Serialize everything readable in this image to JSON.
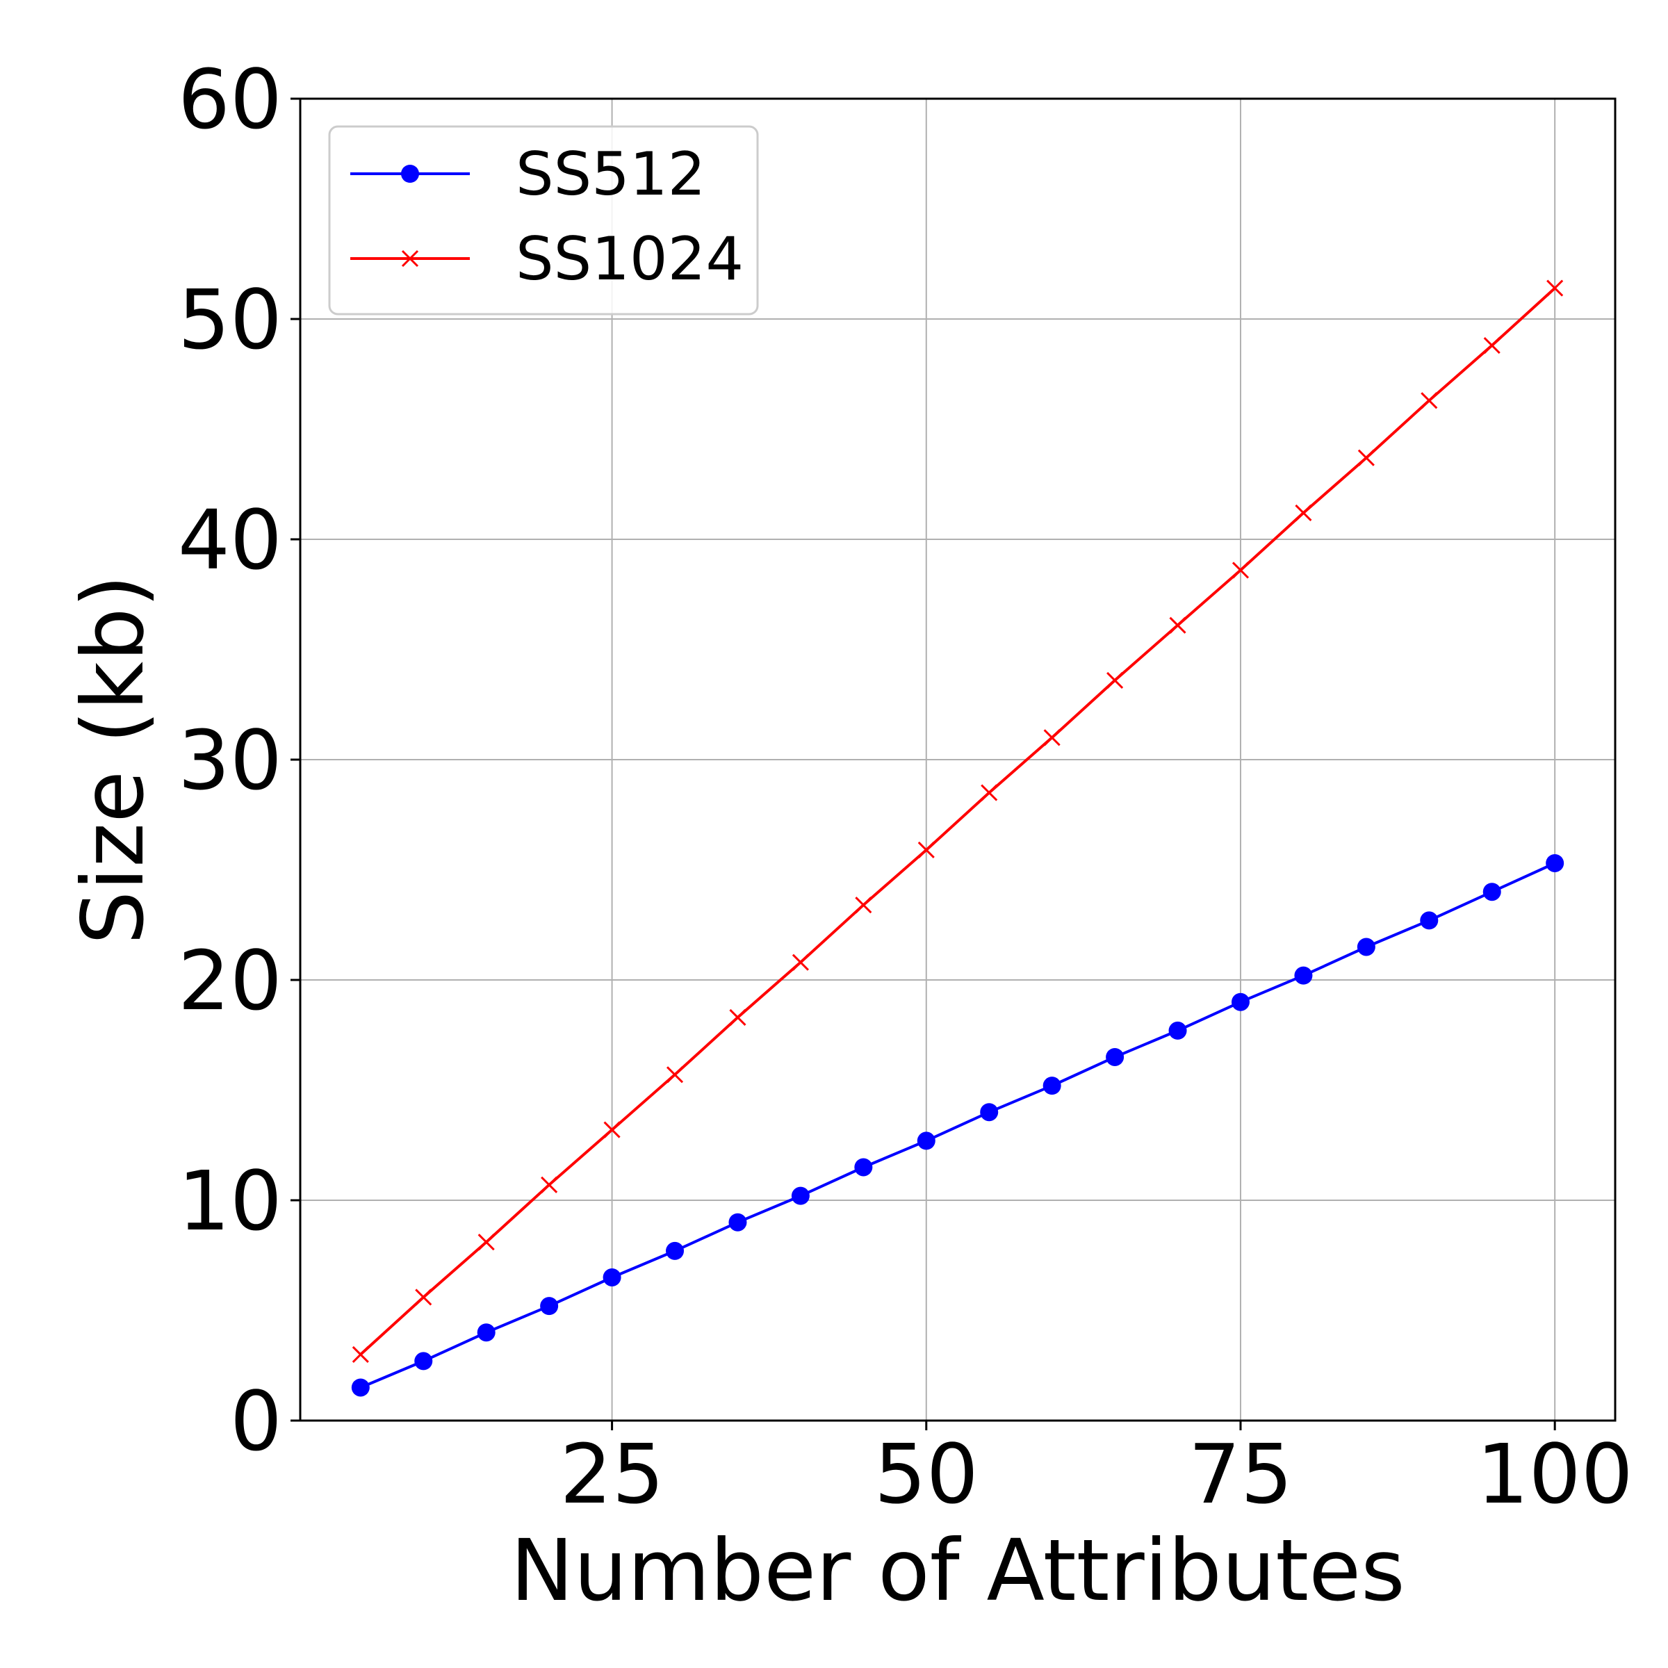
{
  "chart_data": {
    "type": "line",
    "xlabel": "Number of Attributes",
    "ylabel": "Size (kb)",
    "xlim": [
      0.2,
      104.8
    ],
    "ylim": [
      0,
      60
    ],
    "xticks": [
      25,
      50,
      75,
      100
    ],
    "yticks": [
      0,
      10,
      20,
      30,
      40,
      50,
      60
    ],
    "grid": true,
    "legend_position": "top-left",
    "x": [
      5,
      10,
      15,
      20,
      25,
      30,
      35,
      40,
      45,
      50,
      55,
      60,
      65,
      70,
      75,
      80,
      85,
      90,
      95,
      100
    ],
    "series": [
      {
        "name": "SS512",
        "color": "#0000ff",
        "marker": "circle",
        "values": [
          1.5,
          2.7,
          4.0,
          5.2,
          6.5,
          7.7,
          9.0,
          10.2,
          11.5,
          12.7,
          14.0,
          15.2,
          16.5,
          17.7,
          19.0,
          20.2,
          21.5,
          22.7,
          24.0,
          25.3
        ]
      },
      {
        "name": "SS1024",
        "color": "#ff0000",
        "marker": "x",
        "values": [
          3.0,
          5.6,
          8.1,
          10.7,
          13.2,
          15.7,
          18.3,
          20.8,
          23.4,
          25.9,
          28.5,
          31.0,
          33.6,
          36.1,
          38.6,
          41.2,
          43.7,
          46.3,
          48.8,
          51.4
        ]
      }
    ]
  }
}
